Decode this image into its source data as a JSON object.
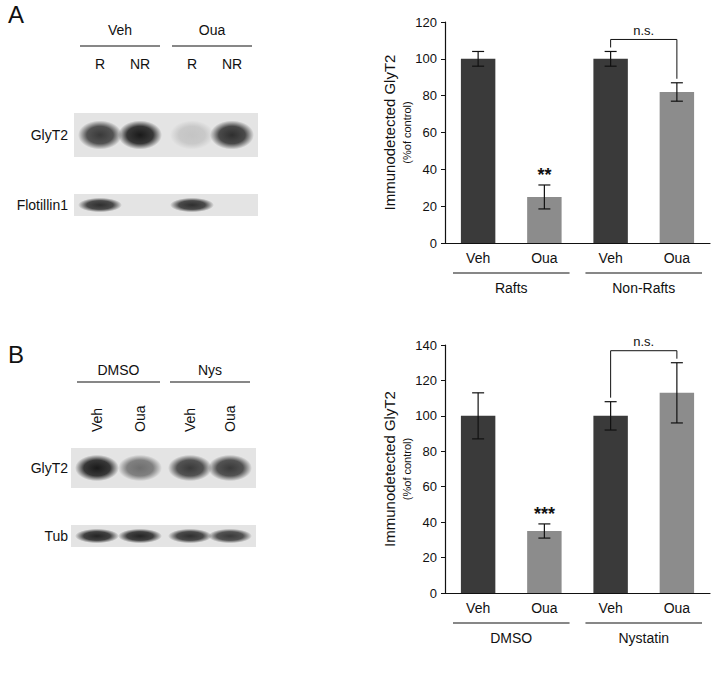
{
  "chart_data": [
    {
      "type": "bar",
      "ylabel": "Immunodetected GlyT2",
      "ylabel_note": "(%of control)",
      "categories": [
        "Veh",
        "Oua",
        "Veh",
        "Oua"
      ],
      "groups": [
        {
          "label": "Rafts",
          "from": 0,
          "to": 1
        },
        {
          "label": "Non-Rafts",
          "from": 2,
          "to": 3
        }
      ],
      "values": [
        100,
        25,
        100,
        82
      ],
      "errors": [
        4,
        6.5,
        4,
        5
      ],
      "colors": [
        "#3a3a3a",
        "#8c8c8c",
        "#3a3a3a",
        "#8c8c8c"
      ],
      "ylim": [
        0,
        120
      ],
      "yticks": [
        0,
        20,
        40,
        60,
        80,
        100,
        120
      ],
      "grid": false,
      "annotations": [
        {
          "text": "**",
          "at": 1
        },
        {
          "text": "n.s.",
          "from": 2,
          "to": 3
        }
      ]
    },
    {
      "type": "bar",
      "ylabel": "Immunodetected GlyT2",
      "ylabel_note": "(%of control)",
      "categories": [
        "Veh",
        "Oua",
        "Veh",
        "Oua"
      ],
      "groups": [
        {
          "label": "DMSO",
          "from": 0,
          "to": 1
        },
        {
          "label": "Nystatin",
          "from": 2,
          "to": 3
        }
      ],
      "values": [
        100,
        35,
        100,
        113
      ],
      "errors": [
        13,
        4,
        8,
        17
      ],
      "colors": [
        "#3a3a3a",
        "#8c8c8c",
        "#3a3a3a",
        "#8c8c8c"
      ],
      "ylim": [
        0,
        140
      ],
      "yticks": [
        0,
        20,
        40,
        60,
        80,
        100,
        120,
        140
      ],
      "grid": false,
      "annotations": [
        {
          "text": "***",
          "at": 1
        },
        {
          "text": "n.s.",
          "from": 2,
          "to": 3
        }
      ]
    }
  ],
  "blots": [
    {
      "panel": "A",
      "groups": [
        {
          "label": "Veh",
          "lanes": [
            "R",
            "NR"
          ]
        },
        {
          "label": "Oua",
          "lanes": [
            "R",
            "NR"
          ]
        }
      ],
      "rows": [
        {
          "label": "GlyT2",
          "bands": [
            0.8,
            0.95,
            0.15,
            0.85
          ]
        },
        {
          "label": "Flotillin1",
          "bands": [
            0.85,
            0,
            0.85,
            0
          ]
        }
      ]
    },
    {
      "panel": "B",
      "groups": [
        {
          "label": "DMSO",
          "lanes": [
            "Veh",
            "Oua"
          ]
        },
        {
          "label": "Nys",
          "lanes": [
            "Veh",
            "Oua"
          ]
        }
      ],
      "rows": [
        {
          "label": "GlyT2",
          "bands": [
            0.95,
            0.55,
            0.8,
            0.8
          ]
        },
        {
          "label": "Tub",
          "bands": [
            0.9,
            0.9,
            0.85,
            0.8
          ]
        }
      ]
    }
  ]
}
